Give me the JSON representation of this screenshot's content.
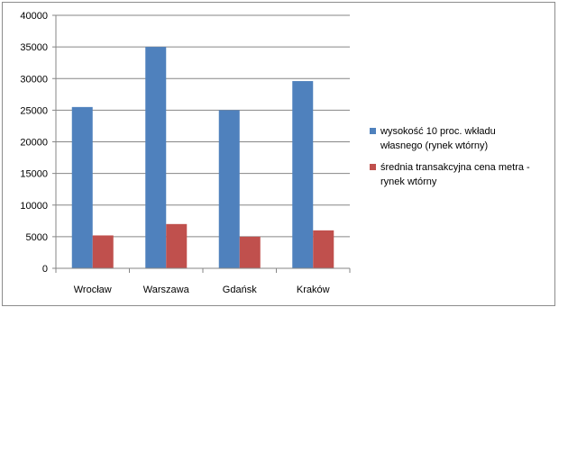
{
  "chart_data": {
    "type": "bar",
    "categories": [
      "Wrocław",
      "Warszawa",
      "Gdańsk",
      "Kraków"
    ],
    "series": [
      {
        "name": "wysokość 10 proc. wkładu własnego (rynek wtórny)",
        "name_lines": [
          "wysokość 10 proc. wkładu",
          "własnego (rynek wtórny)"
        ],
        "color": "#4f81bd",
        "values": [
          25500,
          35000,
          25000,
          29600
        ]
      },
      {
        "name": "średnia transakcyjna cena metra - rynek wtórny",
        "name_lines": [
          "średnia transakcyjna cena metra -",
          "rynek wtórny"
        ],
        "color": "#c0504d",
        "values": [
          5200,
          7000,
          5000,
          6000
        ]
      }
    ],
    "yticks": [
      "0",
      "5000",
      "10000",
      "15000",
      "20000",
      "25000",
      "30000",
      "35000",
      "40000"
    ],
    "ylim": [
      0,
      40000
    ],
    "grid": true,
    "legend": "right"
  }
}
